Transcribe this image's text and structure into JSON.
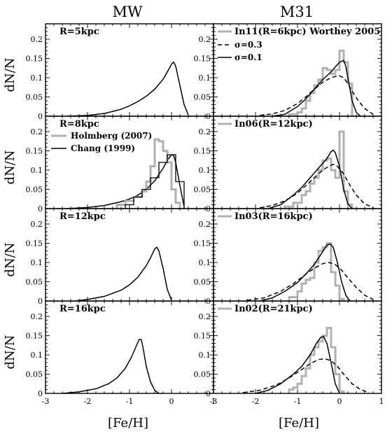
{
  "figure": {
    "col_titles": [
      "MW",
      "M31"
    ],
    "ylabel": "dN/N",
    "xlabel": "[Fe/H]"
  },
  "chart_data": [
    {
      "panel": "MW-1",
      "type": "line",
      "label": "R=5kpc",
      "xlim": [
        -3,
        1
      ],
      "ylim": [
        0,
        0.24
      ],
      "x_ticks": [
        -3,
        -2,
        -1,
        0,
        1
      ],
      "y_ticks": [
        0,
        0.05,
        0.1,
        0.15,
        0.2
      ],
      "series": [
        {
          "style": "solid",
          "x": [
            -2.5,
            -2.0,
            -1.6,
            -1.2,
            -1.0,
            -0.8,
            -0.6,
            -0.4,
            -0.2,
            -0.1,
            0.0,
            0.05,
            0.1,
            0.2,
            0.3,
            0.4
          ],
          "y": [
            0.0,
            0.002,
            0.007,
            0.018,
            0.027,
            0.038,
            0.052,
            0.07,
            0.096,
            0.115,
            0.135,
            0.141,
            0.13,
            0.08,
            0.03,
            0.003
          ]
        }
      ]
    },
    {
      "panel": "MW-2",
      "type": "line",
      "label": "R=8kpc",
      "xlim": [
        -3,
        1
      ],
      "ylim": [
        0,
        0.24
      ],
      "x_ticks": [
        -3,
        -2,
        -1,
        0,
        1
      ],
      "y_ticks": [
        0,
        0.05,
        0.1,
        0.15,
        0.2
      ],
      "series": [
        {
          "style": "solid",
          "x": [
            -2.5,
            -2.0,
            -1.6,
            -1.2,
            -1.0,
            -0.8,
            -0.6,
            -0.4,
            -0.2,
            -0.1,
            0.0,
            0.05,
            0.1,
            0.2,
            0.3
          ],
          "y": [
            0.0,
            0.003,
            0.008,
            0.018,
            0.025,
            0.035,
            0.05,
            0.072,
            0.105,
            0.125,
            0.14,
            0.138,
            0.12,
            0.06,
            0.005
          ]
        },
        {
          "name": "Holmberg (2007)",
          "style": "step-grey",
          "edges": [
            -1.3,
            -1.1,
            -0.9,
            -0.7,
            -0.6,
            -0.5,
            -0.4,
            -0.3,
            -0.2,
            -0.1,
            0.0,
            0.1,
            0.2
          ],
          "values": [
            0.01,
            0.02,
            0.03,
            0.045,
            0.07,
            0.11,
            0.18,
            0.175,
            0.15,
            0.12,
            0.05,
            0.015
          ]
        },
        {
          "name": "Chang (1999)",
          "style": "step-black",
          "edges": [
            -1.1,
            -0.9,
            -0.7,
            -0.5,
            -0.3,
            -0.1,
            0.1,
            0.3
          ],
          "values": [
            0.01,
            0.03,
            0.05,
            0.08,
            0.12,
            0.14,
            0.07
          ]
        }
      ]
    },
    {
      "panel": "MW-3",
      "type": "line",
      "label": "R=12kpc",
      "xlim": [
        -3,
        1
      ],
      "ylim": [
        0,
        0.24
      ],
      "x_ticks": [
        -3,
        -2,
        -1,
        0,
        1
      ],
      "y_ticks": [
        0,
        0.05,
        0.1,
        0.15,
        0.2
      ],
      "series": [
        {
          "style": "solid",
          "x": [
            -2.3,
            -2.0,
            -1.6,
            -1.2,
            -1.0,
            -0.8,
            -0.6,
            -0.5,
            -0.4,
            -0.35,
            -0.3,
            -0.2,
            -0.1,
            0.0
          ],
          "y": [
            0.0,
            0.004,
            0.012,
            0.028,
            0.042,
            0.062,
            0.092,
            0.112,
            0.135,
            0.14,
            0.13,
            0.085,
            0.03,
            0.002
          ]
        }
      ]
    },
    {
      "panel": "MW-4",
      "type": "line",
      "label": "R=16kpc",
      "xlim": [
        -3,
        1
      ],
      "ylim": [
        0,
        0.24
      ],
      "x_ticks": [
        -3,
        -2,
        -1,
        0,
        1
      ],
      "y_ticks": [
        0,
        0.05,
        0.1,
        0.15,
        0.2
      ],
      "series": [
        {
          "style": "solid",
          "x": [
            -2.6,
            -2.2,
            -1.8,
            -1.5,
            -1.3,
            -1.1,
            -0.95,
            -0.85,
            -0.77,
            -0.72,
            -0.68,
            -0.6,
            -0.5,
            -0.4,
            -0.3
          ],
          "y": [
            0.0,
            0.004,
            0.012,
            0.025,
            0.04,
            0.065,
            0.095,
            0.12,
            0.14,
            0.14,
            0.12,
            0.07,
            0.03,
            0.008,
            0.0
          ]
        }
      ]
    },
    {
      "panel": "M31-1",
      "type": "line",
      "label": "In11(R=6kpc) Worthey 2005",
      "legend": [
        {
          "style": "dashed",
          "label": "σ=0.3"
        },
        {
          "style": "solid",
          "label": "σ=0.1"
        }
      ],
      "xlim": [
        -3,
        1
      ],
      "ylim": [
        0,
        0.24
      ],
      "x_ticks": [
        -3,
        -2,
        -1,
        0,
        1
      ],
      "y_ticks": [
        0,
        0.05,
        0.1,
        0.15,
        0.2
      ],
      "series": [
        {
          "name": "In11(R=6kpc) Worthey 2005",
          "style": "step-grey",
          "edges": [
            -1.2,
            -1.0,
            -0.9,
            -0.8,
            -0.7,
            -0.6,
            -0.5,
            -0.4,
            -0.3,
            -0.2,
            -0.1,
            0.0,
            0.1,
            0.2,
            0.3
          ],
          "values": [
            0.005,
            0.01,
            0.02,
            0.04,
            0.06,
            0.08,
            0.095,
            0.125,
            0.12,
            0.11,
            0.12,
            0.17,
            0.14,
            0.085
          ]
        },
        {
          "name": "σ=0.3",
          "style": "dashed",
          "x": [
            -1.9,
            -1.6,
            -1.3,
            -1.0,
            -0.8,
            -0.6,
            -0.4,
            -0.2,
            -0.05,
            0.0,
            0.1,
            0.2,
            0.3,
            0.45,
            0.6,
            0.8
          ],
          "y": [
            0.002,
            0.006,
            0.015,
            0.033,
            0.05,
            0.07,
            0.088,
            0.1,
            0.105,
            0.105,
            0.1,
            0.085,
            0.065,
            0.04,
            0.02,
            0.005
          ]
        },
        {
          "name": "σ=0.1",
          "style": "solid",
          "x": [
            -1.6,
            -1.3,
            -1.0,
            -0.8,
            -0.6,
            -0.4,
            -0.2,
            -0.1,
            0.0,
            0.1,
            0.15,
            0.2,
            0.3,
            0.4,
            0.5
          ],
          "y": [
            0.0,
            0.005,
            0.025,
            0.045,
            0.07,
            0.095,
            0.115,
            0.128,
            0.14,
            0.145,
            0.13,
            0.1,
            0.04,
            0.01,
            0.0
          ]
        }
      ]
    },
    {
      "panel": "M31-2",
      "type": "line",
      "label": "In06(R=12kpc)",
      "xlim": [
        -3,
        1
      ],
      "ylim": [
        0,
        0.24
      ],
      "x_ticks": [
        -3,
        -2,
        -1,
        0,
        1
      ],
      "y_ticks": [
        0,
        0.05,
        0.1,
        0.15,
        0.2
      ],
      "series": [
        {
          "style": "step-grey",
          "edges": [
            -1.3,
            -1.1,
            -0.9,
            -0.8,
            -0.7,
            -0.6,
            -0.5,
            -0.4,
            -0.3,
            -0.2,
            -0.1,
            0.0,
            0.1,
            0.2,
            0.3
          ],
          "values": [
            0.005,
            0.015,
            0.035,
            0.045,
            0.065,
            0.08,
            0.1,
            0.125,
            0.13,
            0.1,
            0.08,
            0.2,
            0.045,
            0.01
          ]
        },
        {
          "style": "dashed",
          "x": [
            -1.9,
            -1.6,
            -1.3,
            -1.0,
            -0.8,
            -0.6,
            -0.4,
            -0.25,
            -0.15,
            -0.05,
            0.1,
            0.25,
            0.4,
            0.6,
            0.8
          ],
          "y": [
            0.002,
            0.008,
            0.02,
            0.04,
            0.06,
            0.08,
            0.1,
            0.11,
            0.115,
            0.11,
            0.09,
            0.06,
            0.035,
            0.012,
            0.003
          ]
        },
        {
          "style": "solid",
          "x": [
            -1.7,
            -1.4,
            -1.1,
            -0.9,
            -0.7,
            -0.5,
            -0.3,
            -0.2,
            -0.15,
            -0.1,
            0.0,
            0.1,
            0.2,
            0.3
          ],
          "y": [
            0.0,
            0.01,
            0.035,
            0.055,
            0.08,
            0.105,
            0.13,
            0.148,
            0.152,
            0.145,
            0.11,
            0.05,
            0.012,
            0.0
          ]
        }
      ]
    },
    {
      "panel": "M31-3",
      "type": "line",
      "label": "In03(R=16kpc)",
      "xlim": [
        -3,
        1
      ],
      "ylim": [
        0,
        0.24
      ],
      "x_ticks": [
        -3,
        -2,
        -1,
        0,
        1
      ],
      "y_ticks": [
        0,
        0.05,
        0.1,
        0.15,
        0.2
      ],
      "series": [
        {
          "style": "step-grey",
          "edges": [
            -1.2,
            -1.0,
            -0.9,
            -0.8,
            -0.7,
            -0.6,
            -0.5,
            -0.4,
            -0.3,
            -0.2,
            -0.1,
            0.0,
            0.1
          ],
          "values": [
            0.01,
            0.025,
            0.045,
            0.055,
            0.06,
            0.1,
            0.13,
            0.14,
            0.15,
            0.075,
            0.04,
            0.005
          ]
        },
        {
          "style": "dashed",
          "x": [
            -2.2,
            -1.8,
            -1.4,
            -1.1,
            -0.8,
            -0.6,
            -0.4,
            -0.25,
            -0.1,
            0.05,
            0.2,
            0.4,
            0.6,
            0.8
          ],
          "y": [
            0.002,
            0.008,
            0.025,
            0.045,
            0.07,
            0.085,
            0.097,
            0.1,
            0.095,
            0.08,
            0.06,
            0.035,
            0.015,
            0.004
          ]
        },
        {
          "style": "solid",
          "x": [
            -1.9,
            -1.6,
            -1.3,
            -1.0,
            -0.8,
            -0.6,
            -0.4,
            -0.3,
            -0.22,
            -0.15,
            -0.05,
            0.05,
            0.15,
            0.25
          ],
          "y": [
            0.0,
            0.008,
            0.025,
            0.048,
            0.07,
            0.095,
            0.128,
            0.145,
            0.148,
            0.14,
            0.1,
            0.05,
            0.015,
            0.0
          ]
        }
      ]
    },
    {
      "panel": "M31-4",
      "type": "line",
      "label": "In02(R=21kpc)",
      "xlim": [
        -3,
        1
      ],
      "ylim": [
        0,
        0.24
      ],
      "x_ticks": [
        -3,
        -2,
        -1,
        0,
        1
      ],
      "y_ticks": [
        0,
        0.05,
        0.1,
        0.15,
        0.2
      ],
      "series": [
        {
          "style": "step-grey",
          "edges": [
            -1.2,
            -1.1,
            -1.0,
            -0.9,
            -0.8,
            -0.7,
            -0.6,
            -0.5,
            -0.4,
            -0.3,
            -0.2,
            -0.1,
            0.0,
            0.1
          ],
          "values": [
            0.01,
            0.015,
            0.025,
            0.045,
            0.065,
            0.1,
            0.12,
            0.135,
            0.15,
            0.17,
            0.12,
            0.05,
            0.005
          ]
        },
        {
          "style": "dashed",
          "x": [
            -2.3,
            -1.9,
            -1.5,
            -1.2,
            -0.9,
            -0.7,
            -0.5,
            -0.35,
            -0.2,
            -0.05,
            0.1,
            0.3,
            0.5,
            0.7
          ],
          "y": [
            0.002,
            0.008,
            0.022,
            0.04,
            0.062,
            0.077,
            0.088,
            0.09,
            0.085,
            0.07,
            0.05,
            0.025,
            0.01,
            0.002
          ]
        },
        {
          "style": "solid",
          "x": [
            -2.0,
            -1.7,
            -1.4,
            -1.1,
            -0.9,
            -0.7,
            -0.55,
            -0.45,
            -0.38,
            -0.3,
            -0.2,
            -0.1,
            0.0
          ],
          "y": [
            0.0,
            0.008,
            0.025,
            0.05,
            0.07,
            0.1,
            0.13,
            0.145,
            0.148,
            0.13,
            0.08,
            0.025,
            0.0
          ]
        }
      ]
    }
  ]
}
